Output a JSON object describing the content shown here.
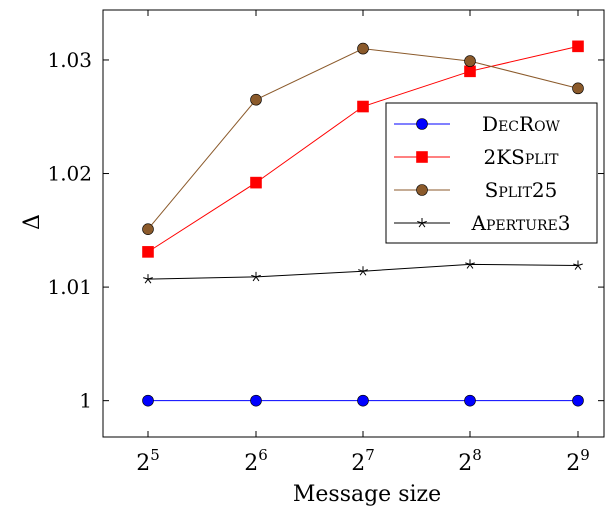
{
  "chart_data": {
    "type": "line",
    "x_tick_labels": [
      {
        "base": "2",
        "exp": "5"
      },
      {
        "base": "2",
        "exp": "6"
      },
      {
        "base": "2",
        "exp": "7"
      },
      {
        "base": "2",
        "exp": "8"
      },
      {
        "base": "2",
        "exp": "9"
      }
    ],
    "x": [
      32,
      64,
      128,
      256,
      512
    ],
    "x_scale": "log2",
    "xlabel": "Message size",
    "ylabel": "Δ",
    "y_ticks": [
      {
        "value": 1.0,
        "label": "1"
      },
      {
        "value": 1.01,
        "label": "1.01"
      },
      {
        "value": 1.02,
        "label": "1.02"
      },
      {
        "value": 1.03,
        "label": "1.03"
      }
    ],
    "ylim": [
      0.9968,
      1.0344
    ],
    "grid": false,
    "legend_position": "right",
    "series": [
      {
        "name": "DecRow",
        "color": "#0000ff",
        "marker": "circle",
        "values": [
          1.0,
          1.0,
          1.0,
          1.0,
          1.0
        ]
      },
      {
        "name": "2KSplit",
        "color": "#ff0000",
        "marker": "square",
        "values": [
          1.0131,
          1.0192,
          1.0259,
          1.029,
          1.0312
        ]
      },
      {
        "name": "Split25",
        "color": "#8b5a2b",
        "marker": "circle",
        "values": [
          1.0151,
          1.0265,
          1.031,
          1.0299,
          1.0275
        ]
      },
      {
        "name": "Aperture3",
        "color": "#000000",
        "marker": "star",
        "values": [
          1.0107,
          1.0109,
          1.0114,
          1.012,
          1.0119
        ]
      }
    ]
  }
}
